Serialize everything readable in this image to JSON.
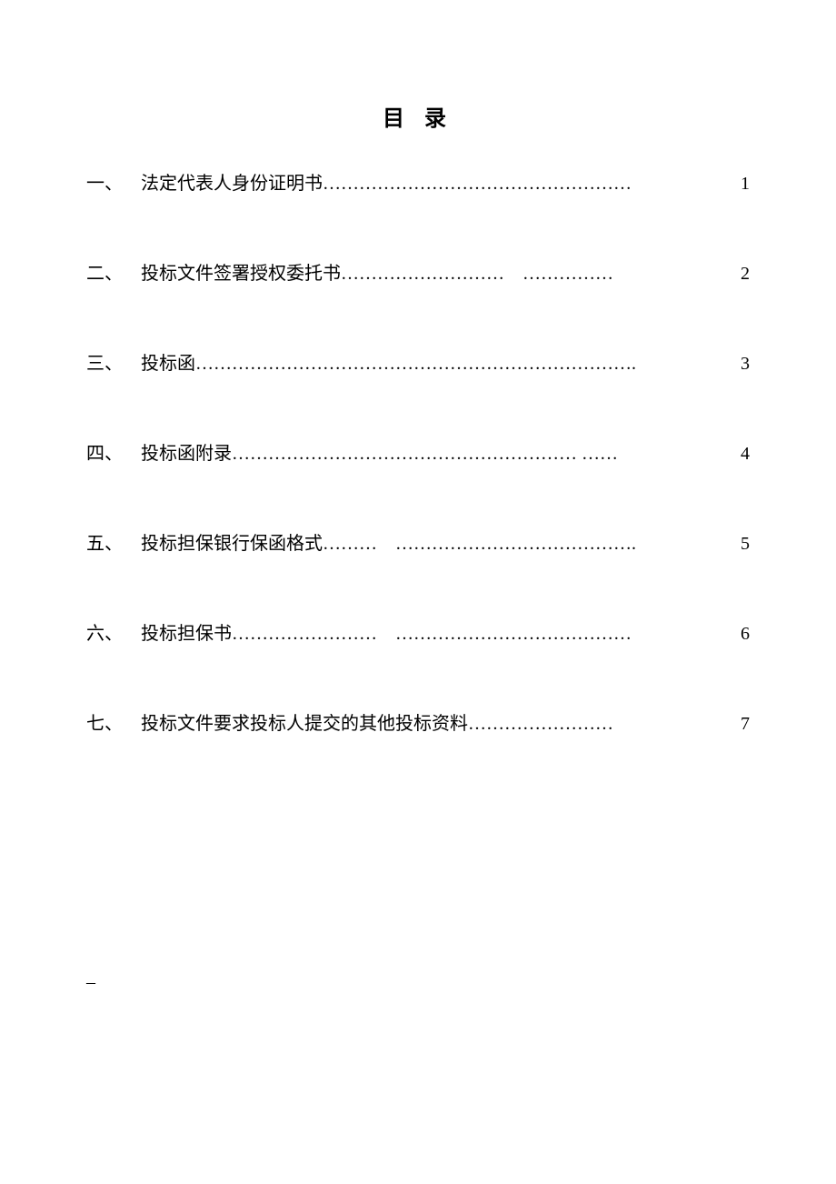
{
  "title": "目 录",
  "entries": [
    {
      "num": "一、",
      "label": "法定代表人身份证明书",
      "leader": "……………………………………………",
      "page": " 1"
    },
    {
      "num": "二、",
      "label": "投标文件签署授权委托书",
      "leader": "………………………　……………",
      "page": "2"
    },
    {
      "num": "三、",
      "label": "投标函",
      "leader": "……………………………………………………………….",
      "page": "3"
    },
    {
      "num": "四、",
      "label": "投标函附录",
      "leader": "………………………………………………… ……",
      "page": "4"
    },
    {
      "num": "五、",
      "label": "投标担保银行保函格式",
      "leader": "………　………………………………….",
      "page": "5"
    },
    {
      "num": "六、",
      "label": "投标担保书",
      "leader": "……………………　…………………………………",
      "page": "6"
    },
    {
      "num": "七、",
      "label": "投标文件要求投标人提交的其他投标资料",
      "leader": "……………………",
      "page": "7"
    }
  ],
  "footer_mark": "–"
}
